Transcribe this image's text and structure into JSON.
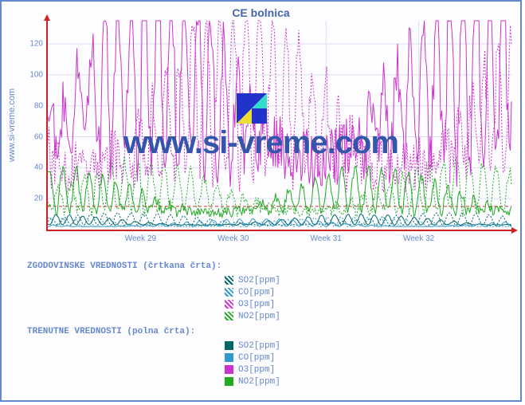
{
  "title": "CE bolnica",
  "ylabel_text": "www.si-vreme.com",
  "watermark_text": "www.si-vreme.com",
  "chart": {
    "ylim": [
      0,
      135
    ],
    "yticks": [
      20,
      40,
      60,
      80,
      100,
      120
    ],
    "xlim": [
      0,
      5
    ],
    "xticks": [
      {
        "pos": 1,
        "label": "Week 29"
      },
      {
        "pos": 2,
        "label": "Week 30"
      },
      {
        "pos": 3,
        "label": "Week 31"
      },
      {
        "pos": 4,
        "label": "Week 32"
      }
    ],
    "ref_line_y": 15,
    "ref_line_color": "#cc3333",
    "grid_color": "#d8e0f0",
    "axis_color": "#cc2222",
    "series": [
      {
        "id": "so2_hist",
        "color": "#006666",
        "dashed": true,
        "amp_lo": 0,
        "amp_hi": 8,
        "base": 3,
        "noise": 0.4
      },
      {
        "id": "co_hist",
        "color": "#3399cc",
        "dashed": true,
        "amp_lo": 0,
        "amp_hi": 6,
        "base": 2,
        "noise": 0.3
      },
      {
        "id": "o3_hist",
        "color": "#cc33cc",
        "dashed": true,
        "amp_lo": 5,
        "amp_hi": 120,
        "base": 40,
        "noise": 1.0
      },
      {
        "id": "no2_hist",
        "color": "#22aa22",
        "dashed": true,
        "amp_lo": 2,
        "amp_hi": 35,
        "base": 12,
        "noise": 0.8
      },
      {
        "id": "so2_cur",
        "color": "#006666",
        "dashed": false,
        "amp_lo": 0,
        "amp_hi": 7,
        "base": 3,
        "noise": 0.35
      },
      {
        "id": "co_cur",
        "color": "#3399cc",
        "dashed": false,
        "amp_lo": 0,
        "amp_hi": 5,
        "base": 2,
        "noise": 0.25
      },
      {
        "id": "o3_cur",
        "color": "#cc33cc",
        "dashed": false,
        "amp_lo": 5,
        "amp_hi": 130,
        "base": 45,
        "noise": 1.1
      },
      {
        "id": "no2_cur",
        "color": "#22aa22",
        "dashed": false,
        "amp_lo": 2,
        "amp_hi": 32,
        "base": 11,
        "noise": 0.75
      }
    ]
  },
  "legend": {
    "historical_title": "ZGODOVINSKE VREDNOSTI (črtkana črta):",
    "current_title": "TRENUTNE VREDNOSTI (polna črta):",
    "items": [
      {
        "label": "SO2[ppm]",
        "color": "#006666"
      },
      {
        "label": "CO[ppm]",
        "color": "#3399cc"
      },
      {
        "label": "O3[ppm]",
        "color": "#cc33cc"
      },
      {
        "label": "NO2[ppm]",
        "color": "#22aa22"
      }
    ]
  },
  "watermark_logo_colors": {
    "tl": "#2233cc",
    "tr": "#33ddcc",
    "bl": "#eedd33",
    "br": "#2233cc"
  }
}
